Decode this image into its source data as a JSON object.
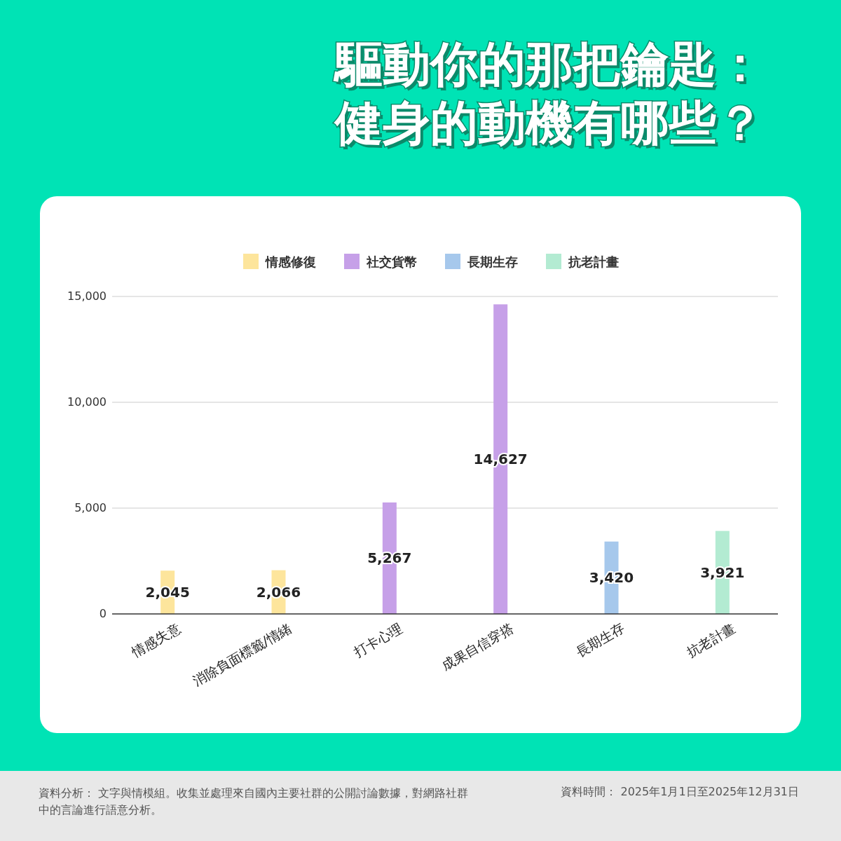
{
  "chart_data": {
    "type": "bar",
    "title": "驅動你的那把鑰匙：健身的動機有哪些？",
    "categories": [
      "情感失意",
      "消除負面標籤/情緒",
      "打卡心理",
      "成果自信穿搭",
      "長期生存",
      "抗老計畫"
    ],
    "stacked": true,
    "series": [
      {
        "name": "情感修復",
        "color": "#fde59c",
        "values": [
          2045,
          2066,
          null,
          null,
          null,
          null
        ],
        "value_labels": [
          "2,045",
          "2,066",
          null,
          null,
          null,
          null
        ]
      },
      {
        "name": "社交貨幣",
        "color": "#c6a0e8",
        "values": [
          null,
          null,
          5267,
          14627,
          null,
          null
        ],
        "value_labels": [
          null,
          null,
          "5,267",
          "14,627",
          null,
          null
        ]
      },
      {
        "name": "長期生存",
        "color": "#a6c8ec",
        "values": [
          null,
          null,
          null,
          null,
          3420,
          null
        ],
        "value_labels": [
          null,
          null,
          null,
          null,
          "3,420",
          null
        ]
      },
      {
        "name": "抗老計畫",
        "color": "#b3ebd2",
        "values": [
          null,
          null,
          null,
          null,
          null,
          3921
        ],
        "value_labels": [
          null,
          null,
          null,
          null,
          null,
          "3,921"
        ]
      }
    ],
    "ylim": [
      0,
      15000
    ],
    "yticks": [
      0,
      {
        "value": 5000,
        "label": "5,000"
      },
      {
        "value": 10000,
        "label": "10,000"
      },
      {
        "value": 15000,
        "label": "15,000"
      }
    ],
    "grid": "y",
    "legend": "top",
    "annotations": [
      "資料分析： 文字與情模組。收集並處理來自國內主要社群的公開討論數據，對網路社群中的言論進行語意分析。",
      "資料時間： 2025年1月1日至2025年12月31日"
    ]
  }
}
